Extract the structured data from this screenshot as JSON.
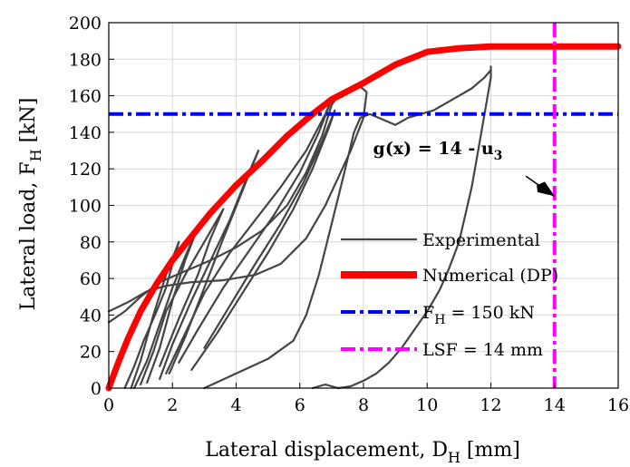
{
  "chart_data": {
    "type": "line",
    "xlabel": "Lateral displacement, D",
    "xlabel_sub": "H",
    "xlabel_unit": " [mm]",
    "ylabel": "Lateral load, F",
    "ylabel_sub": "H",
    "ylabel_unit": " [kN]",
    "xlim": [
      0,
      16
    ],
    "ylim": [
      0,
      200
    ],
    "xticks": [
      0,
      2,
      4,
      6,
      8,
      10,
      12,
      14,
      16
    ],
    "yticks": [
      0,
      20,
      40,
      60,
      80,
      100,
      120,
      140,
      160,
      180,
      200
    ],
    "grid": true,
    "legend_position": "bottom-right",
    "annotation": {
      "label": "g(x) = 14 - u",
      "sub": "3",
      "at": [
        8.3,
        128
      ],
      "arrow_from": [
        13.1,
        116
      ],
      "arrow_to": [
        14.0,
        105
      ]
    },
    "series": [
      {
        "name": "Experimental",
        "color": "#444444",
        "style": "solid",
        "segments": [
          [
            [
              0.0,
              42
            ],
            [
              0.6,
              47
            ],
            [
              1.2,
              53
            ],
            [
              1.8,
              56
            ],
            [
              2.6,
              58
            ],
            [
              3.6,
              59
            ],
            [
              4.6,
              62
            ],
            [
              5.4,
              68
            ],
            [
              6.2,
              82
            ],
            [
              6.8,
              100
            ],
            [
              7.2,
              115
            ],
            [
              7.6,
              130
            ],
            [
              8.0,
              148
            ],
            [
              8.1,
              162
            ],
            [
              7.9,
              165
            ]
          ],
          [
            [
              0.0,
              36
            ],
            [
              0.5,
              42
            ],
            [
              1.0,
              50
            ],
            [
              1.6,
              58
            ],
            [
              2.4,
              64
            ],
            [
              3.2,
              70
            ],
            [
              4.0,
              77
            ],
            [
              4.8,
              86
            ],
            [
              5.6,
              100
            ],
            [
              6.2,
              118
            ],
            [
              6.7,
              138
            ],
            [
              7.0,
              155
            ],
            [
              7.2,
              160
            ]
          ],
          [
            [
              0.5,
              0
            ],
            [
              0.8,
              12
            ],
            [
              1.1,
              26
            ],
            [
              1.5,
              42
            ],
            [
              1.8,
              55
            ],
            [
              2.0,
              68
            ],
            [
              2.2,
              80
            ],
            [
              1.8,
              62
            ],
            [
              1.4,
              40
            ],
            [
              1.0,
              15
            ],
            [
              0.7,
              0
            ]
          ],
          [
            [
              0.8,
              0
            ],
            [
              1.2,
              15
            ],
            [
              1.6,
              35
            ],
            [
              2.0,
              55
            ],
            [
              2.4,
              72
            ],
            [
              2.8,
              88
            ],
            [
              2.4,
              70
            ],
            [
              2.0,
              48
            ],
            [
              1.6,
              22
            ],
            [
              1.2,
              3
            ]
          ],
          [
            [
              1.0,
              2
            ],
            [
              1.4,
              20
            ],
            [
              1.8,
              42
            ],
            [
              2.4,
              62
            ],
            [
              3.0,
              80
            ],
            [
              3.6,
              98
            ],
            [
              3.2,
              82
            ],
            [
              2.8,
              62
            ],
            [
              2.2,
              38
            ],
            [
              1.6,
              12
            ]
          ],
          [
            [
              1.6,
              5
            ],
            [
              2.0,
              24
            ],
            [
              2.6,
              48
            ],
            [
              3.2,
              70
            ],
            [
              3.8,
              92
            ],
            [
              4.4,
              118
            ],
            [
              4.7,
              130
            ],
            [
              4.2,
              108
            ],
            [
              3.6,
              82
            ],
            [
              3.0,
              55
            ],
            [
              2.4,
              28
            ],
            [
              1.9,
              8
            ]
          ],
          [
            [
              1.8,
              8
            ],
            [
              2.4,
              30
            ],
            [
              3.0,
              52
            ],
            [
              3.8,
              74
            ],
            [
              4.6,
              92
            ],
            [
              5.4,
              110
            ],
            [
              6.2,
              130
            ],
            [
              6.8,
              150
            ],
            [
              7.0,
              158
            ],
            [
              6.6,
              140
            ],
            [
              6.0,
              118
            ],
            [
              5.2,
              95
            ],
            [
              4.4,
              75
            ],
            [
              3.6,
              55
            ],
            [
              2.8,
              32
            ],
            [
              2.2,
              14
            ]
          ],
          [
            [
              2.6,
              10
            ],
            [
              3.4,
              30
            ],
            [
              4.2,
              52
            ],
            [
              5.0,
              74
            ],
            [
              5.8,
              98
            ],
            [
              6.4,
              120
            ],
            [
              6.9,
              142
            ],
            [
              7.1,
              152
            ],
            [
              6.7,
              135
            ],
            [
              6.1,
              112
            ],
            [
              5.4,
              90
            ],
            [
              4.6,
              68
            ],
            [
              3.8,
              45
            ],
            [
              3.0,
              22
            ]
          ],
          [
            [
              3.0,
              0
            ],
            [
              4.0,
              8
            ],
            [
              5.0,
              16
            ],
            [
              5.8,
              26
            ],
            [
              6.2,
              40
            ],
            [
              6.6,
              62
            ],
            [
              7.0,
              90
            ],
            [
              7.4,
              118
            ],
            [
              7.7,
              140
            ],
            [
              7.9,
              148
            ],
            [
              8.2,
              150
            ],
            [
              8.6,
              147
            ],
            [
              9.0,
              144
            ],
            [
              9.4,
              148
            ],
            [
              9.8,
              150
            ],
            [
              10.2,
              152
            ],
            [
              10.6,
              156
            ],
            [
              11.0,
              160
            ],
            [
              11.4,
              164
            ],
            [
              11.8,
              170
            ],
            [
              12.0,
              174
            ],
            [
              12.0,
              176
            ],
            [
              12.0,
              170
            ],
            [
              11.9,
              160
            ],
            [
              11.8,
              150
            ],
            [
              11.6,
              130
            ],
            [
              11.4,
              110
            ],
            [
              11.2,
              95
            ],
            [
              11.0,
              80
            ],
            [
              10.7,
              66
            ],
            [
              10.4,
              54
            ],
            [
              10.0,
              42
            ],
            [
              9.6,
              32
            ],
            [
              9.2,
              22
            ],
            [
              8.8,
              14
            ],
            [
              8.4,
              8
            ],
            [
              8.0,
              4
            ],
            [
              7.6,
              1
            ],
            [
              7.2,
              0
            ],
            [
              6.8,
              2
            ],
            [
              6.4,
              0
            ]
          ]
        ]
      },
      {
        "name": "Numerical (DP)",
        "color": "#ff0000",
        "style": "solid",
        "points": [
          [
            0.0,
            0
          ],
          [
            0.3,
            14
          ],
          [
            0.6,
            27
          ],
          [
            1.0,
            42
          ],
          [
            1.5,
            57
          ],
          [
            2.0,
            70
          ],
          [
            2.6,
            83
          ],
          [
            3.2,
            96
          ],
          [
            4.0,
            111
          ],
          [
            4.8,
            124
          ],
          [
            5.6,
            138
          ],
          [
            6.4,
            150
          ],
          [
            7.0,
            158
          ],
          [
            8.0,
            167
          ],
          [
            9.0,
            177
          ],
          [
            10.0,
            184
          ],
          [
            11.0,
            186
          ],
          [
            12.0,
            187
          ],
          [
            13.0,
            187
          ],
          [
            14.0,
            187
          ],
          [
            15.0,
            187
          ],
          [
            16.0,
            187
          ]
        ]
      },
      {
        "name": "F",
        "name_sub": "H",
        "name_suffix": " = 150 kN",
        "color": "#0000ff",
        "style": "dashdot",
        "orientation": "horizontal",
        "value": 150
      },
      {
        "name": "LSF = 14 mm",
        "color": "#ff00ff",
        "style": "dashdot",
        "orientation": "vertical",
        "value": 14
      }
    ]
  }
}
